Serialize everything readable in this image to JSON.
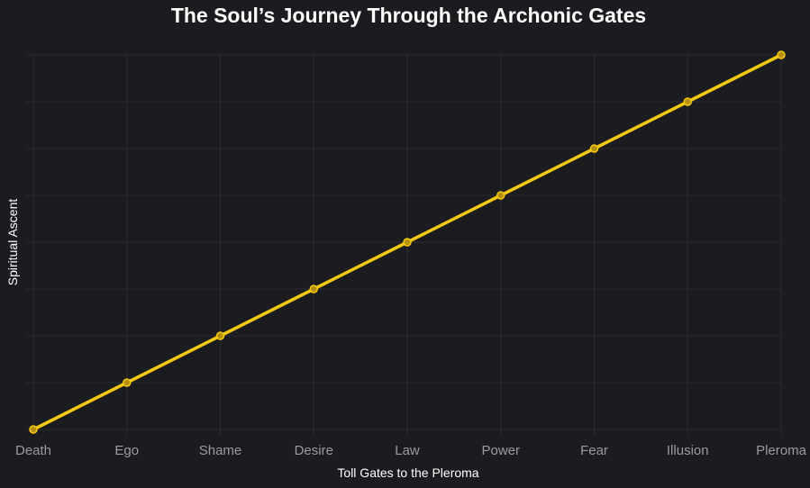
{
  "chart_data": {
    "type": "line",
    "title": "The Soul’s Journey Through the Archonic Gates",
    "xlabel": "Toll Gates to the Pleroma",
    "ylabel": "Spiritual Ascent",
    "categories": [
      "Death",
      "Ego",
      "Shame",
      "Desire",
      "Law",
      "Power",
      "Fear",
      "Illusion",
      "Pleroma"
    ],
    "series": [
      {
        "values": [
          0,
          1,
          2,
          3,
          4,
          5,
          6,
          7,
          8
        ]
      }
    ],
    "ylim": [
      0,
      8
    ],
    "y_ticks_labeled": false,
    "grid": true,
    "legend": "none"
  },
  "colors": {
    "background": "#1b1c1f",
    "grid": "#2c2d31",
    "line": "#f2c811",
    "marker_fill": "#b58f0a",
    "tick_text": "#9a9ba0",
    "title_text": "#ffffff"
  }
}
